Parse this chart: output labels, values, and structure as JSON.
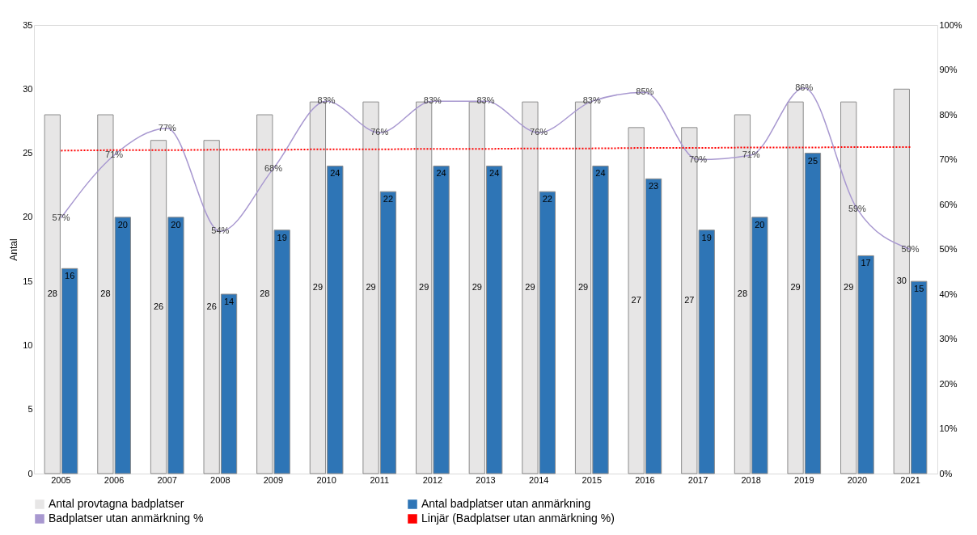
{
  "chart_data": {
    "type": "bar",
    "ylabel": "Antal",
    "categories": [
      "2005",
      "2006",
      "2007",
      "2008",
      "2009",
      "2010",
      "2011",
      "2012",
      "2013",
      "2014",
      "2015",
      "2016",
      "2017",
      "2018",
      "2019",
      "2020",
      "2021"
    ],
    "series": [
      {
        "name": "Antal provtagna badplatser",
        "color": "#e7e6e6",
        "values": [
          28,
          28,
          26,
          26,
          28,
          29,
          29,
          29,
          29,
          29,
          29,
          27,
          27,
          28,
          29,
          29,
          30
        ],
        "value_labels": [
          "28",
          "28",
          "26",
          "26",
          "28",
          "29",
          "29",
          "29",
          "29",
          "29",
          "29",
          "27",
          "27",
          "28",
          "29",
          "29",
          "30"
        ]
      },
      {
        "name": "Antal badplatser utan anmärkning",
        "color": "#2e75b6",
        "values": [
          16,
          20,
          20,
          14,
          19,
          24,
          22,
          24,
          24,
          22,
          24,
          23,
          19,
          20,
          25,
          17,
          15
        ],
        "value_labels": [
          "16",
          "20",
          "20",
          "14",
          "19",
          "24",
          "22",
          "24",
          "24",
          "22",
          "24",
          "23",
          "19",
          "20",
          "25",
          "17",
          "15"
        ]
      },
      {
        "name": "Badplatser utan anmärkning %",
        "type": "line",
        "axis": "y2",
        "color": "#a898d0",
        "line_style": "solid",
        "values": [
          57,
          71,
          77,
          54,
          68,
          83,
          76,
          83,
          83,
          76,
          83,
          85,
          70,
          71,
          86,
          59,
          50
        ],
        "value_labels": [
          "57%",
          "71%",
          "77%",
          "54%",
          "68%",
          "83%",
          "76%",
          "83%",
          "83%",
          "76%",
          "83%",
          "85%",
          "70%",
          "71%",
          "86%",
          "59%",
          "50%"
        ]
      },
      {
        "name": "Linjär (Badplatser utan anmärkning %)",
        "type": "line",
        "axis": "y2",
        "color": "#ff0000",
        "line_style": "dotted",
        "values": [
          72.0,
          72.1,
          72.1,
          72.2,
          72.2,
          72.3,
          72.3,
          72.4,
          72.4,
          72.5,
          72.5,
          72.6,
          72.6,
          72.7,
          72.7,
          72.8,
          72.8
        ]
      }
    ],
    "ylim": [
      0,
      35
    ],
    "yticks": [
      0,
      5,
      10,
      15,
      20,
      25,
      30,
      35
    ],
    "y2lim": [
      0,
      100
    ],
    "y2ticks": [
      {
        "value": 0,
        "label": "0%"
      },
      {
        "value": 10,
        "label": "10%"
      },
      {
        "value": 20,
        "label": "20%"
      },
      {
        "value": 30,
        "label": "30%"
      },
      {
        "value": 40,
        "label": "40%"
      },
      {
        "value": 50,
        "label": "50%"
      },
      {
        "value": 60,
        "label": "60%"
      },
      {
        "value": 70,
        "label": "70%"
      },
      {
        "value": 80,
        "label": "80%"
      },
      {
        "value": 90,
        "label": "90%"
      },
      {
        "value": 100,
        "label": "100%"
      }
    ],
    "grid": false,
    "legend": "bottom",
    "marker": "none"
  }
}
